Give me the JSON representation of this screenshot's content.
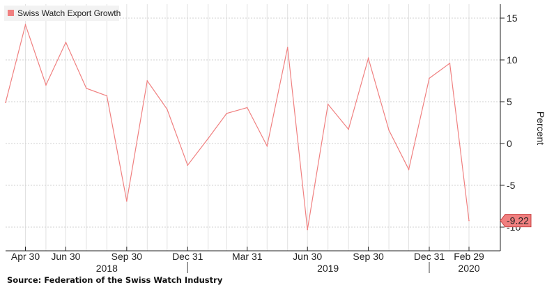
{
  "chart_data": {
    "type": "line",
    "legend": {
      "label": "Swiss Watch Export Growth",
      "placement": "top-left"
    },
    "ylabel": "Percent",
    "ylim": [
      -12.5,
      16.5
    ],
    "yticks": [
      15,
      10,
      5,
      0,
      -5,
      -10
    ],
    "grid": true,
    "series": [
      {
        "name": "Swiss Watch Export Growth",
        "color": "#f08080",
        "x": [
          "2018-03-31",
          "2018-04-30",
          "2018-05-31",
          "2018-06-30",
          "2018-07-31",
          "2018-08-31",
          "2018-09-30",
          "2018-10-31",
          "2018-11-30",
          "2018-12-31",
          "2019-01-31",
          "2019-02-28",
          "2019-03-31",
          "2019-04-30",
          "2019-05-31",
          "2019-06-30",
          "2019-07-31",
          "2019-08-31",
          "2019-09-30",
          "2019-10-31",
          "2019-11-30",
          "2019-12-31",
          "2020-01-31",
          "2020-02-29"
        ],
        "values": [
          4.9,
          14.2,
          7.0,
          12.1,
          6.6,
          5.7,
          -6.9,
          7.5,
          4.1,
          -2.6,
          0.6,
          3.6,
          4.3,
          -0.3,
          11.5,
          -10.3,
          4.7,
          1.7,
          10.2,
          1.6,
          -3.1,
          7.8,
          9.6,
          -9.22
        ]
      }
    ],
    "last_value_label": "-9.22",
    "x_tick_labels": [
      {
        "label": "Apr 30",
        "x": "2018-04-30"
      },
      {
        "label": "Jun 30",
        "x": "2018-06-30"
      },
      {
        "label": "Sep 30",
        "x": "2018-09-30"
      },
      {
        "label": "Dec 31",
        "x": "2018-12-31"
      },
      {
        "label": "Mar 31",
        "x": "2019-03-31"
      },
      {
        "label": "Jun 30",
        "x": "2019-06-30"
      },
      {
        "label": "Sep 30",
        "x": "2019-09-30"
      },
      {
        "label": "Dec 31",
        "x": "2019-12-31"
      },
      {
        "label": "Feb 29",
        "x": "2020-02-29"
      }
    ],
    "year_labels": [
      {
        "label": "2018",
        "x": "2018-08-31"
      },
      {
        "label": "2019",
        "x": "2019-07-31"
      },
      {
        "label": "2020",
        "x": "2020-02-29"
      }
    ],
    "year_separators": [
      "2018-12-31",
      "2019-12-31"
    ]
  },
  "footer": {
    "source": "Source: Federation of the Swiss Watch Industry"
  }
}
